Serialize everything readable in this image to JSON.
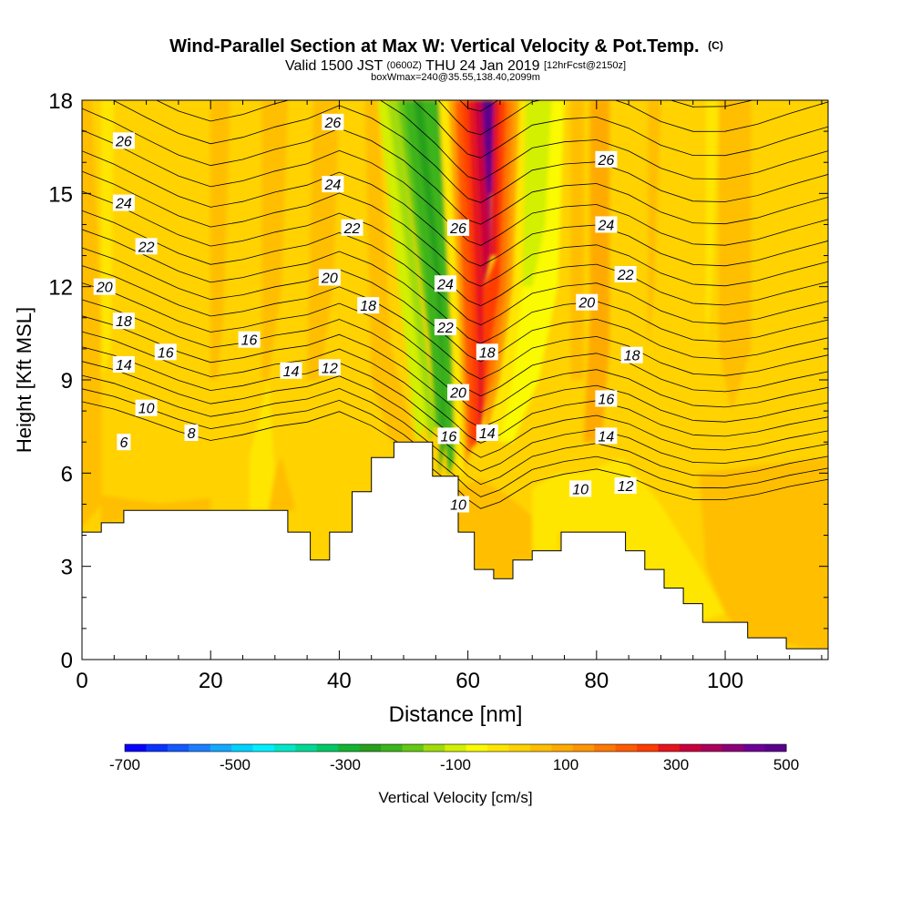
{
  "chart_data": {
    "type": "contour",
    "title": "Wind-Parallel Section at Max W: Vertical Velocity & Pot.Temp.",
    "title_unit": "(C)",
    "subtitle_main": "Valid 1500 JST",
    "subtitle_z": "(0600Z)",
    "subtitle_date": "THU 24 Jan 2019",
    "subtitle_fcst": "[12hrFcst@2150z]",
    "subtitle_box": "boxWmax=240@35.55,138.40,2099m",
    "xlabel": "Distance [nm]",
    "ylabel": "Height [Kft MSL]",
    "xlim": [
      0,
      116
    ],
    "ylim": [
      0,
      18
    ],
    "x_ticks": [
      0,
      20,
      40,
      60,
      80,
      100
    ],
    "y_ticks": [
      0,
      3,
      6,
      9,
      12,
      15,
      18
    ],
    "colorbar": {
      "label": "Vertical Velocity [cm/s]",
      "min": -700,
      "max": 500,
      "step": 50,
      "tick_labels": [
        -700,
        -500,
        -300,
        -100,
        100,
        300,
        500
      ],
      "colors": [
        "#0a00ff",
        "#0a32ff",
        "#1458ff",
        "#1e7eff",
        "#14a8ff",
        "#00d2ff",
        "#00f0ff",
        "#00e8c8",
        "#00d896",
        "#00c864",
        "#14b432",
        "#28a01e",
        "#3cb41e",
        "#64c814",
        "#a0dc0a",
        "#d2f000",
        "#fafa00",
        "#ffe600",
        "#ffd200",
        "#ffbe00",
        "#ffaa00",
        "#ff9600",
        "#ff7800",
        "#ff5a00",
        "#ff3c00",
        "#e6141e",
        "#c8003c",
        "#aa005a",
        "#8c0078",
        "#6e0096",
        "#5a008c"
      ]
    },
    "pot_temp_labels": [
      {
        "value": "26",
        "x": 6.5,
        "y": 16.7
      },
      {
        "value": "24",
        "x": 6.5,
        "y": 14.7
      },
      {
        "value": "22",
        "x": 10,
        "y": 13.3
      },
      {
        "value": "20",
        "x": 3.5,
        "y": 12.0
      },
      {
        "value": "18",
        "x": 6.5,
        "y": 10.9
      },
      {
        "value": "16",
        "x": 13,
        "y": 9.9
      },
      {
        "value": "14",
        "x": 6.5,
        "y": 9.5
      },
      {
        "value": "10",
        "x": 10,
        "y": 8.1
      },
      {
        "value": "8",
        "x": 17,
        "y": 7.3
      },
      {
        "value": "6",
        "x": 6.5,
        "y": 7.0
      },
      {
        "value": "26",
        "x": 39,
        "y": 17.3
      },
      {
        "value": "24",
        "x": 39,
        "y": 15.3
      },
      {
        "value": "22",
        "x": 42,
        "y": 13.9
      },
      {
        "value": "20",
        "x": 38.5,
        "y": 12.3
      },
      {
        "value": "18",
        "x": 44.5,
        "y": 11.4
      },
      {
        "value": "16",
        "x": 26,
        "y": 10.3
      },
      {
        "value": "14",
        "x": 32.5,
        "y": 9.3
      },
      {
        "value": "12",
        "x": 38.5,
        "y": 9.4
      },
      {
        "value": "26",
        "x": 58.5,
        "y": 13.9
      },
      {
        "value": "24",
        "x": 56.5,
        "y": 12.1
      },
      {
        "value": "22",
        "x": 56.5,
        "y": 10.7
      },
      {
        "value": "20",
        "x": 58.5,
        "y": 8.6
      },
      {
        "value": "18",
        "x": 63,
        "y": 9.9
      },
      {
        "value": "16",
        "x": 57,
        "y": 7.2
      },
      {
        "value": "14",
        "x": 63,
        "y": 7.3
      },
      {
        "value": "10",
        "x": 58.5,
        "y": 5.0
      },
      {
        "value": "26",
        "x": 81.5,
        "y": 16.1
      },
      {
        "value": "24",
        "x": 81.5,
        "y": 14.0
      },
      {
        "value": "22",
        "x": 84.5,
        "y": 12.4
      },
      {
        "value": "20",
        "x": 78.5,
        "y": 11.5
      },
      {
        "value": "18",
        "x": 85.5,
        "y": 9.8
      },
      {
        "value": "16",
        "x": 81.5,
        "y": 8.4
      },
      {
        "value": "14",
        "x": 81.5,
        "y": 7.2
      },
      {
        "value": "10",
        "x": 77.5,
        "y": 5.5
      },
      {
        "value": "12",
        "x": 84.5,
        "y": 5.6
      }
    ],
    "terrain": [
      [
        0,
        4.1
      ],
      [
        3,
        4.1
      ],
      [
        3,
        4.4
      ],
      [
        6.5,
        4.4
      ],
      [
        6.5,
        4.8
      ],
      [
        32,
        4.8
      ],
      [
        32,
        4.1
      ],
      [
        35.5,
        4.1
      ],
      [
        35.5,
        3.2
      ],
      [
        38.5,
        3.2
      ],
      [
        38.5,
        4.1
      ],
      [
        42,
        4.1
      ],
      [
        42,
        5.4
      ],
      [
        45,
        5.4
      ],
      [
        45,
        6.5
      ],
      [
        48.5,
        6.5
      ],
      [
        48.5,
        7.0
      ],
      [
        54.5,
        7.0
      ],
      [
        54.5,
        5.9
      ],
      [
        58.5,
        5.9
      ],
      [
        58.5,
        4.1
      ],
      [
        61,
        4.1
      ],
      [
        61,
        2.9
      ],
      [
        64,
        2.9
      ],
      [
        64,
        2.6
      ],
      [
        67,
        2.6
      ],
      [
        67,
        3.2
      ],
      [
        70,
        3.2
      ],
      [
        70,
        3.5
      ],
      [
        74.5,
        3.5
      ],
      [
        74.5,
        4.1
      ],
      [
        84.5,
        4.1
      ],
      [
        84.5,
        3.5
      ],
      [
        87.5,
        3.5
      ],
      [
        87.5,
        2.9
      ],
      [
        90.5,
        2.9
      ],
      [
        90.5,
        2.3
      ],
      [
        93.5,
        2.3
      ],
      [
        93.5,
        1.8
      ],
      [
        96.5,
        1.8
      ],
      [
        96.5,
        1.2
      ],
      [
        103.5,
        1.2
      ],
      [
        103.5,
        0.7
      ],
      [
        109.5,
        0.7
      ],
      [
        109.5,
        0.35
      ],
      [
        116,
        0.35
      ]
    ]
  }
}
